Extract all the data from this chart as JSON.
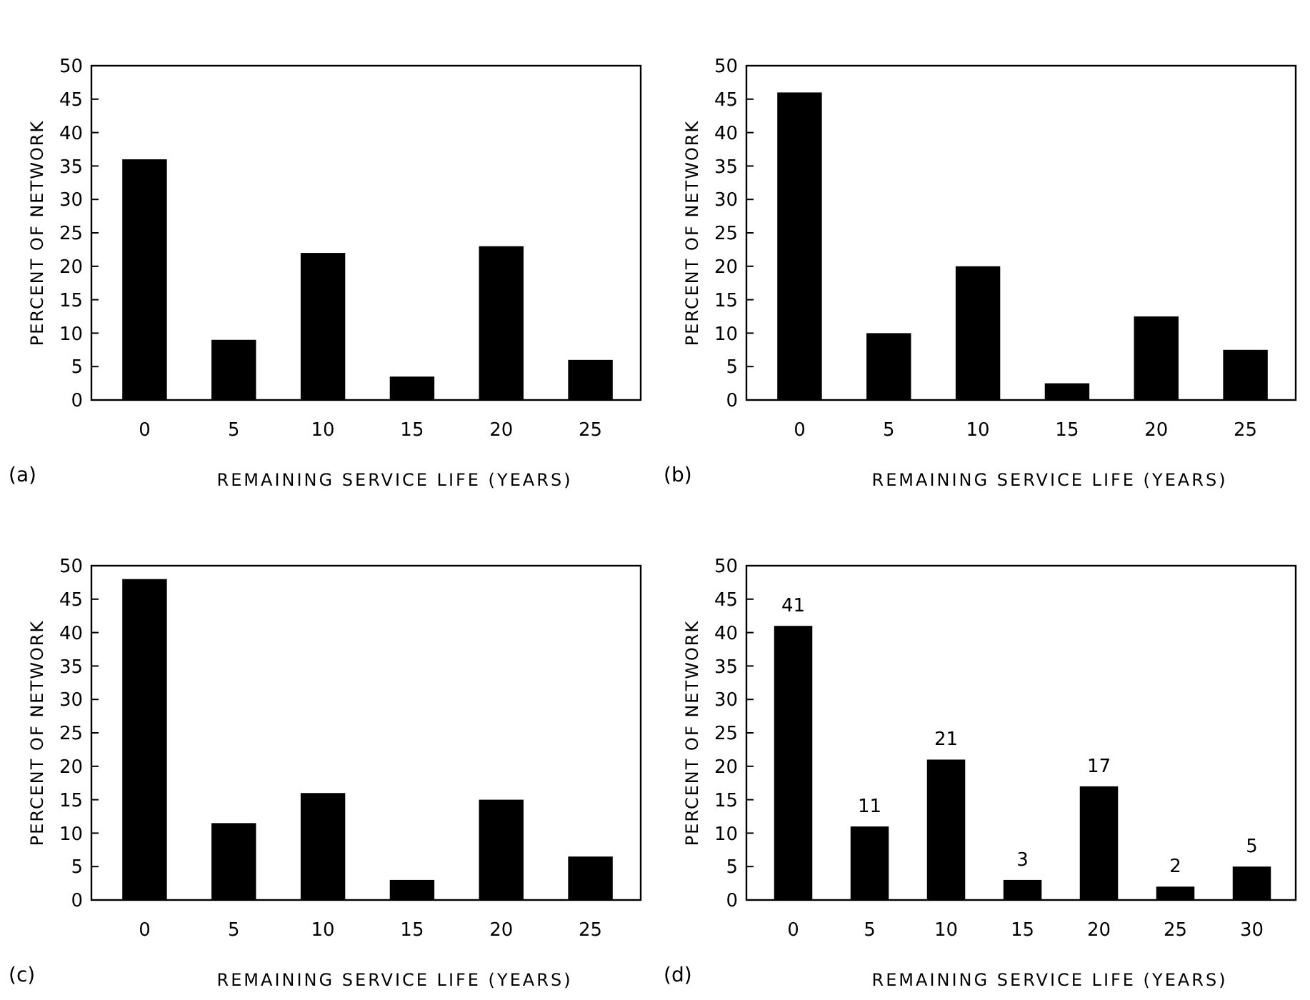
{
  "chart_data": [
    {
      "type": "bar",
      "categories": [
        "0",
        "5",
        "10",
        "15",
        "20",
        "25"
      ],
      "values": [
        36,
        9,
        22,
        3.5,
        23,
        6
      ],
      "color": "#000000",
      "ylim": [
        0,
        50
      ],
      "yticks": [
        0,
        5,
        10,
        15,
        20,
        25,
        30,
        35,
        40,
        45,
        50
      ],
      "xlabel": "REMAINING SERVICE LIFE (YEARS)",
      "ylabel": "PERCENT OF NETWORK",
      "annotations": [
        "(a)"
      ]
    },
    {
      "type": "bar",
      "categories": [
        "0",
        "5",
        "10",
        "15",
        "20",
        "25"
      ],
      "values": [
        46,
        10,
        20,
        2.5,
        12.5,
        7.5
      ],
      "color": "#000000",
      "ylim": [
        0,
        50
      ],
      "yticks": [
        0,
        5,
        10,
        15,
        20,
        25,
        30,
        35,
        40,
        45,
        50
      ],
      "xlabel": "REMAINING SERVICE LIFE (YEARS)",
      "ylabel": "PERCENT OF NETWORK",
      "annotations": [
        "(b)"
      ]
    },
    {
      "type": "bar",
      "categories": [
        "0",
        "5",
        "10",
        "15",
        "20",
        "25"
      ],
      "values": [
        48,
        11.5,
        16,
        3,
        15,
        6.5
      ],
      "color": "#000000",
      "ylim": [
        0,
        50
      ],
      "yticks": [
        0,
        5,
        10,
        15,
        20,
        25,
        30,
        35,
        40,
        45,
        50
      ],
      "xlabel": "REMAINING SERVICE LIFE (YEARS)",
      "ylabel": "PERCENT OF NETWORK",
      "annotations": [
        "(c)"
      ]
    },
    {
      "type": "bar",
      "categories": [
        "0",
        "5",
        "10",
        "15",
        "20",
        "25",
        "30"
      ],
      "values": [
        41,
        11,
        21,
        3,
        17,
        2,
        5
      ],
      "color": "#000000",
      "ylim": [
        0,
        50
      ],
      "yticks": [
        0,
        5,
        10,
        15,
        20,
        25,
        30,
        35,
        40,
        45,
        50
      ],
      "data_labels": true,
      "xlabel": "REMAINING SERVICE LIFE (YEARS)",
      "ylabel": "PERCENT OF NETWORK",
      "annotations": [
        "(d)"
      ]
    }
  ]
}
